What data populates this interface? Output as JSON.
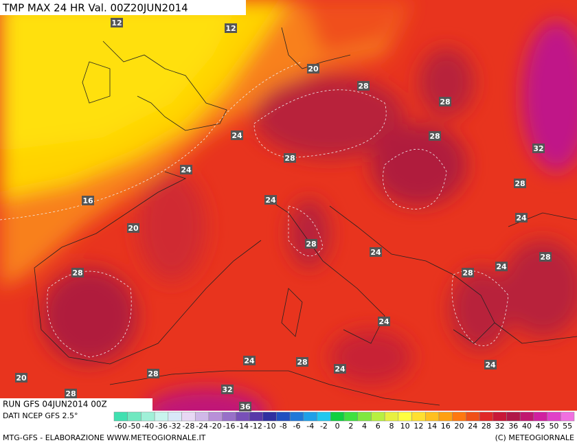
{
  "header": {
    "title": "TMP MAX 24 HR Val. 00Z20JUN2014"
  },
  "run_info": "RUN GFS 04JUN2014 00Z",
  "data_source": "DATI NCEP GFS 2.5°",
  "footer": {
    "left": "MTG-GFS - ELABORAZIONE WWW.METEOGIORNALE.IT",
    "right": "(C) METEOGIORNALE"
  },
  "colorbar": {
    "labels": [
      "-60",
      "-50",
      "-40",
      "-36",
      "-32",
      "-28",
      "-24",
      "-20",
      "-16",
      "-14",
      "-12",
      "-10",
      "-8",
      "-6",
      "-4",
      "-2",
      "0",
      "2",
      "4",
      "6",
      "8",
      "10",
      "12",
      "14",
      "16",
      "20",
      "24",
      "28",
      "32",
      "36",
      "40",
      "45",
      "50",
      "55"
    ],
    "colors": [
      "#40e0b0",
      "#70e8c0",
      "#a0f0d8",
      "#c8f4ee",
      "#d8e8f8",
      "#e8d8f4",
      "#d0b8e8",
      "#b890d8",
      "#9870c8",
      "#7850b8",
      "#5838a8",
      "#3030a0",
      "#2050c0",
      "#2078d8",
      "#20a0e8",
      "#20c8f0",
      "#10d040",
      "#40e040",
      "#80e840",
      "#b8f040",
      "#e8f040",
      "#ffff40",
      "#ffe030",
      "#ffc020",
      "#ffa010",
      "#ff7810",
      "#f05018",
      "#e02828",
      "#c81838",
      "#b01848",
      "#c01870",
      "#d020a0",
      "#e040c8",
      "#f070e0"
    ]
  },
  "contour_labels": [
    "12",
    "12",
    "20",
    "28",
    "28",
    "24",
    "28",
    "32",
    "24",
    "28",
    "28",
    "16",
    "24",
    "24",
    "20",
    "28",
    "24",
    "28",
    "24",
    "28",
    "28",
    "24",
    "24",
    "28",
    "24",
    "24",
    "20",
    "28",
    "32",
    "28",
    "36"
  ]
}
